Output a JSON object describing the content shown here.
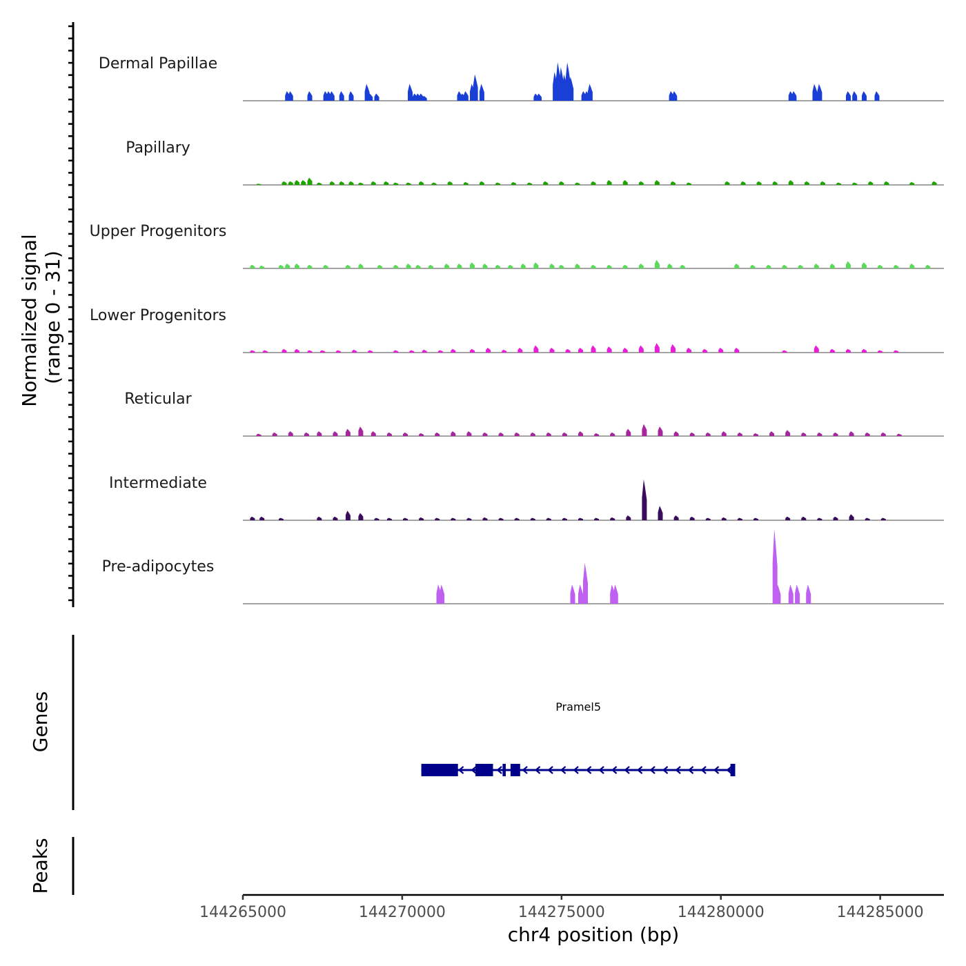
{
  "chart_data": {
    "type": "area",
    "title": "",
    "xlabel": "chr4 position (bp)",
    "ylabel": "Normalized signal\n(range 0 - 31)",
    "ylim": [
      0,
      31
    ],
    "xlim": [
      144265000,
      144287000
    ],
    "x_ticks": [
      144265000,
      144270000,
      144275000,
      144280000,
      144285000
    ],
    "x_tick_labels": [
      "144265000",
      "144270000",
      "144275000",
      "144280000",
      "144285000"
    ],
    "series": [
      {
        "name": "Dermal Papillae",
        "color": "#1a3fd6",
        "peaks": [
          [
            144266400,
            4
          ],
          [
            144266500,
            4
          ],
          [
            144267100,
            4
          ],
          [
            144267600,
            4
          ],
          [
            144267700,
            4
          ],
          [
            144267800,
            4
          ],
          [
            144268100,
            4
          ],
          [
            144268400,
            4
          ],
          [
            144268900,
            7
          ],
          [
            144269000,
            3
          ],
          [
            144269200,
            3
          ],
          [
            144270250,
            7
          ],
          [
            144270400,
            3
          ],
          [
            144270500,
            3
          ],
          [
            144270600,
            3
          ],
          [
            144270700,
            2
          ],
          [
            144271800,
            4
          ],
          [
            144271900,
            3
          ],
          [
            144272000,
            4
          ],
          [
            144272200,
            7
          ],
          [
            144272300,
            11
          ],
          [
            144272500,
            7
          ],
          [
            144274200,
            3
          ],
          [
            144274300,
            3
          ],
          [
            144274800,
            12
          ],
          [
            144274900,
            16
          ],
          [
            144275000,
            14
          ],
          [
            144275100,
            11
          ],
          [
            144275200,
            16
          ],
          [
            144275300,
            10
          ],
          [
            144275700,
            4
          ],
          [
            144275800,
            4
          ],
          [
            144275900,
            7
          ],
          [
            144278450,
            4
          ],
          [
            144278550,
            4
          ],
          [
            144282200,
            4
          ],
          [
            144282300,
            4
          ],
          [
            144282950,
            7
          ],
          [
            144283100,
            7
          ],
          [
            144284000,
            4
          ],
          [
            144284200,
            4
          ],
          [
            144284500,
            4
          ],
          [
            144284900,
            4
          ]
        ]
      },
      {
        "name": "Papillary",
        "color": "#1fa300",
        "peaks": [
          [
            144265500,
            0.5
          ],
          [
            144266300,
            1.5
          ],
          [
            144266500,
            1.5
          ],
          [
            144266700,
            2
          ],
          [
            144266900,
            2
          ],
          [
            144267100,
            3
          ],
          [
            144267400,
            1
          ],
          [
            144267800,
            1.5
          ],
          [
            144268100,
            1.5
          ],
          [
            144268400,
            1.5
          ],
          [
            144268700,
            1
          ],
          [
            144269100,
            1.5
          ],
          [
            144269500,
            1.5
          ],
          [
            144269800,
            1
          ],
          [
            144270200,
            1
          ],
          [
            144270600,
            1.5
          ],
          [
            144271000,
            1
          ],
          [
            144271500,
            1.5
          ],
          [
            144272000,
            1.2
          ],
          [
            144272500,
            1.5
          ],
          [
            144273000,
            1
          ],
          [
            144273500,
            1.2
          ],
          [
            144274000,
            1
          ],
          [
            144274500,
            1.5
          ],
          [
            144275000,
            1.5
          ],
          [
            144275500,
            1
          ],
          [
            144276000,
            1.5
          ],
          [
            144276500,
            2
          ],
          [
            144277000,
            2
          ],
          [
            144277500,
            1.5
          ],
          [
            144278000,
            2
          ],
          [
            144278500,
            1.5
          ],
          [
            144279000,
            1
          ],
          [
            144280200,
            1.5
          ],
          [
            144280700,
            1.5
          ],
          [
            144281200,
            1.5
          ],
          [
            144281700,
            1.5
          ],
          [
            144282200,
            2
          ],
          [
            144282700,
            1.5
          ],
          [
            144283200,
            1.5
          ],
          [
            144283700,
            1
          ],
          [
            144284200,
            1
          ],
          [
            144284700,
            1.5
          ],
          [
            144285200,
            1.5
          ],
          [
            144286000,
            1.2
          ],
          [
            144286700,
            1.5
          ]
        ]
      },
      {
        "name": "Upper Progenitors",
        "color": "#5ad95a",
        "peaks": [
          [
            144265300,
            1.5
          ],
          [
            144265600,
            1.2
          ],
          [
            144266200,
            1.5
          ],
          [
            144266400,
            2
          ],
          [
            144266700,
            2
          ],
          [
            144267100,
            1.5
          ],
          [
            144267600,
            1.5
          ],
          [
            144268300,
            1.5
          ],
          [
            144268700,
            2
          ],
          [
            144269300,
            1.5
          ],
          [
            144269800,
            1.5
          ],
          [
            144270200,
            2
          ],
          [
            144270500,
            1.5
          ],
          [
            144270900,
            1.5
          ],
          [
            144271400,
            2
          ],
          [
            144271800,
            2
          ],
          [
            144272200,
            2.5
          ],
          [
            144272600,
            2
          ],
          [
            144273000,
            1.5
          ],
          [
            144273400,
            1.5
          ],
          [
            144273800,
            2
          ],
          [
            144274200,
            2.5
          ],
          [
            144274700,
            2
          ],
          [
            144275000,
            1.5
          ],
          [
            144275500,
            2
          ],
          [
            144276000,
            1.5
          ],
          [
            144276500,
            1.5
          ],
          [
            144277000,
            1.5
          ],
          [
            144277500,
            2
          ],
          [
            144278000,
            3.5
          ],
          [
            144278400,
            2
          ],
          [
            144278800,
            1.5
          ],
          [
            144280500,
            2
          ],
          [
            144281000,
            1.5
          ],
          [
            144281500,
            1.5
          ],
          [
            144282000,
            1.5
          ],
          [
            144282500,
            1.5
          ],
          [
            144283000,
            2
          ],
          [
            144283500,
            2
          ],
          [
            144284000,
            3
          ],
          [
            144284500,
            2.5
          ],
          [
            144285000,
            1.5
          ],
          [
            144285500,
            1.5
          ],
          [
            144286000,
            2
          ],
          [
            144286500,
            1.5
          ]
        ]
      },
      {
        "name": "Lower Progenitors",
        "color": "#e81fd8",
        "peaks": [
          [
            144265300,
            1
          ],
          [
            144265700,
            1
          ],
          [
            144266300,
            1.5
          ],
          [
            144266700,
            1.5
          ],
          [
            144267100,
            1
          ],
          [
            144267500,
            1
          ],
          [
            144268000,
            1
          ],
          [
            144268500,
            1.2
          ],
          [
            144269000,
            1
          ],
          [
            144269800,
            1
          ],
          [
            144270300,
            1
          ],
          [
            144270700,
            1.2
          ],
          [
            144271200,
            1
          ],
          [
            144271600,
            1.5
          ],
          [
            144272200,
            1.5
          ],
          [
            144272700,
            2
          ],
          [
            144273200,
            1.2
          ],
          [
            144273700,
            2
          ],
          [
            144274200,
            3
          ],
          [
            144274700,
            2
          ],
          [
            144275200,
            1.5
          ],
          [
            144275600,
            2
          ],
          [
            144276000,
            3
          ],
          [
            144276500,
            2.5
          ],
          [
            144277000,
            2
          ],
          [
            144277500,
            3
          ],
          [
            144278000,
            4
          ],
          [
            144278500,
            3.5
          ],
          [
            144279000,
            2
          ],
          [
            144279500,
            1.5
          ],
          [
            144280000,
            2
          ],
          [
            144280500,
            2
          ],
          [
            144282000,
            1
          ],
          [
            144283000,
            3
          ],
          [
            144283500,
            1.5
          ],
          [
            144284000,
            1.5
          ],
          [
            144284500,
            1.5
          ],
          [
            144285000,
            1
          ],
          [
            144285500,
            1
          ]
        ]
      },
      {
        "name": "Reticular",
        "color": "#a6269e",
        "peaks": [
          [
            144265500,
            1
          ],
          [
            144266000,
            1.5
          ],
          [
            144266500,
            2
          ],
          [
            144267000,
            1.5
          ],
          [
            144267400,
            2
          ],
          [
            144267900,
            2
          ],
          [
            144268300,
            3
          ],
          [
            144268700,
            4
          ],
          [
            144269100,
            2
          ],
          [
            144269600,
            1.5
          ],
          [
            144270100,
            1.5
          ],
          [
            144270600,
            1.2
          ],
          [
            144271100,
            1.5
          ],
          [
            144271600,
            2
          ],
          [
            144272100,
            2
          ],
          [
            144272600,
            1.5
          ],
          [
            144273100,
            1.5
          ],
          [
            144273600,
            1.5
          ],
          [
            144274100,
            1.5
          ],
          [
            144274600,
            1.5
          ],
          [
            144275100,
            1.5
          ],
          [
            144275600,
            2
          ],
          [
            144276100,
            1.2
          ],
          [
            144276600,
            1.5
          ],
          [
            144277100,
            3
          ],
          [
            144277600,
            5
          ],
          [
            144278100,
            4
          ],
          [
            144278600,
            2
          ],
          [
            144279100,
            1.5
          ],
          [
            144279600,
            1.5
          ],
          [
            144280100,
            2
          ],
          [
            144280600,
            1.5
          ],
          [
            144281100,
            1.2
          ],
          [
            144281600,
            2
          ],
          [
            144282100,
            2.5
          ],
          [
            144282600,
            1.5
          ],
          [
            144283100,
            1.5
          ],
          [
            144283600,
            1.5
          ],
          [
            144284100,
            2
          ],
          [
            144284600,
            1.5
          ],
          [
            144285100,
            1.5
          ],
          [
            144285600,
            1
          ]
        ]
      },
      {
        "name": "Intermediate",
        "color": "#3b0b5c",
        "peaks": [
          [
            144265300,
            1.5
          ],
          [
            144265600,
            1.5
          ],
          [
            144266200,
            1
          ],
          [
            144267400,
            1.5
          ],
          [
            144267900,
            1.5
          ],
          [
            144268300,
            4
          ],
          [
            144268700,
            3
          ],
          [
            144269200,
            1
          ],
          [
            144269600,
            1
          ],
          [
            144270100,
            1
          ],
          [
            144270600,
            1.2
          ],
          [
            144271100,
            1
          ],
          [
            144271600,
            1
          ],
          [
            144272100,
            1
          ],
          [
            144272600,
            1.2
          ],
          [
            144273100,
            1
          ],
          [
            144273600,
            1
          ],
          [
            144274100,
            1
          ],
          [
            144274600,
            1
          ],
          [
            144275100,
            1
          ],
          [
            144275600,
            1
          ],
          [
            144276100,
            1
          ],
          [
            144276600,
            1.2
          ],
          [
            144277100,
            2
          ],
          [
            144277600,
            17
          ],
          [
            144278100,
            6
          ],
          [
            144278600,
            2
          ],
          [
            144279100,
            1.5
          ],
          [
            144279600,
            1
          ],
          [
            144280100,
            1.2
          ],
          [
            144280600,
            1
          ],
          [
            144281100,
            1
          ],
          [
            144282100,
            1.5
          ],
          [
            144282600,
            1.5
          ],
          [
            144283100,
            1
          ],
          [
            144283600,
            1.5
          ],
          [
            144284100,
            2.5
          ],
          [
            144284600,
            1
          ],
          [
            144285100,
            1
          ]
        ]
      },
      {
        "name": "Pre-adipocytes",
        "color": "#c060f0",
        "peaks": [
          [
            144271150,
            8
          ],
          [
            144271250,
            8
          ],
          [
            144275350,
            8
          ],
          [
            144275600,
            8
          ],
          [
            144275750,
            17
          ],
          [
            144276600,
            8
          ],
          [
            144276700,
            8
          ],
          [
            144281700,
            31
          ],
          [
            144281800,
            8
          ],
          [
            144282200,
            8
          ],
          [
            144282400,
            8
          ],
          [
            144282750,
            8
          ]
        ]
      }
    ],
    "track_labels": [
      "Dermal Papillae",
      "Papillary",
      "Upper Progenitors",
      "Lower Progenitors",
      "Reticular",
      "Intermediate",
      "Pre-adipocytes"
    ],
    "genes": [
      {
        "name": "Pramel5",
        "strand": "-",
        "start": 144270600,
        "end": 144280450,
        "exons": [
          [
            144270600,
            144271750
          ],
          [
            144272300,
            144272850
          ],
          [
            144273150,
            144273250
          ],
          [
            144273400,
            144273700
          ],
          [
            144280300,
            144280450
          ]
        ]
      }
    ],
    "panels": {
      "genes_title": "Genes",
      "peaks_title": "Peaks"
    }
  }
}
